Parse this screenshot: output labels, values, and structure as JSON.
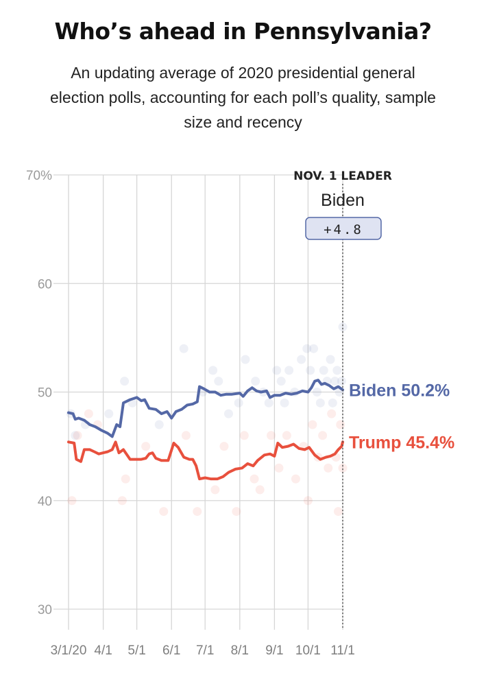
{
  "title": "Who’s ahead in Pennsylvania?",
  "subtitle_lines": [
    "An updating average of 2020 presidential general",
    "election polls, accounting for each poll’s quality, sample",
    "size and recency"
  ],
  "colors": {
    "biden": "#5468a6",
    "trump": "#e8503d",
    "grid": "#d6d6d6",
    "leader_box": "#dfe3f2"
  },
  "chart_data": {
    "type": "line",
    "title": "Who’s ahead in Pennsylvania?",
    "xlabel": "",
    "ylabel": "",
    "ylim": [
      30,
      70
    ],
    "y_ticks": [
      30,
      40,
      50,
      60,
      70
    ],
    "y_tick_labels": [
      "30",
      "40",
      "50",
      "60",
      "70%"
    ],
    "x_range": [
      "2020-03-01",
      "2020-11-03"
    ],
    "x_ticks": [
      "2020-03-01",
      "2020-04-01",
      "2020-05-01",
      "2020-06-01",
      "2020-07-01",
      "2020-08-01",
      "2020-09-01",
      "2020-10-01",
      "2020-11-01"
    ],
    "x_tick_labels": [
      "3/1/20",
      "4/1",
      "5/1",
      "6/1",
      "7/1",
      "8/1",
      "9/1",
      "10/1",
      "11/1"
    ],
    "grid": true,
    "leader": {
      "heading": "NOV. 1 LEADER",
      "name": "Biden",
      "margin": "+4.8",
      "date": "2020-11-01"
    },
    "series": [
      {
        "name": "Biden",
        "label": "Biden 50.2%",
        "color": "#5468a6",
        "points": [
          [
            "2020-03-01",
            48.1
          ],
          [
            "2020-03-05",
            48.0
          ],
          [
            "2020-03-07",
            47.5
          ],
          [
            "2020-03-10",
            47.6
          ],
          [
            "2020-03-15",
            47.4
          ],
          [
            "2020-03-20",
            47.0
          ],
          [
            "2020-03-25",
            46.8
          ],
          [
            "2020-03-30",
            46.5
          ],
          [
            "2020-04-05",
            46.2
          ],
          [
            "2020-04-09",
            45.9
          ],
          [
            "2020-04-13",
            47.0
          ],
          [
            "2020-04-16",
            46.8
          ],
          [
            "2020-04-19",
            49.0
          ],
          [
            "2020-04-25",
            49.3
          ],
          [
            "2020-05-01",
            49.5
          ],
          [
            "2020-05-05",
            49.2
          ],
          [
            "2020-05-08",
            49.3
          ],
          [
            "2020-05-12",
            48.5
          ],
          [
            "2020-05-18",
            48.4
          ],
          [
            "2020-05-23",
            48.0
          ],
          [
            "2020-05-28",
            48.2
          ],
          [
            "2020-06-01",
            47.6
          ],
          [
            "2020-06-05",
            48.2
          ],
          [
            "2020-06-10",
            48.4
          ],
          [
            "2020-06-15",
            48.8
          ],
          [
            "2020-06-20",
            48.9
          ],
          [
            "2020-06-24",
            49.1
          ],
          [
            "2020-06-26",
            50.5
          ],
          [
            "2020-06-30",
            50.3
          ],
          [
            "2020-07-05",
            50.0
          ],
          [
            "2020-07-10",
            50.0
          ],
          [
            "2020-07-15",
            49.7
          ],
          [
            "2020-07-20",
            49.8
          ],
          [
            "2020-07-25",
            49.8
          ],
          [
            "2020-08-01",
            49.9
          ],
          [
            "2020-08-04",
            49.6
          ],
          [
            "2020-08-08",
            50.1
          ],
          [
            "2020-08-12",
            50.4
          ],
          [
            "2020-08-16",
            50.1
          ],
          [
            "2020-08-20",
            50.0
          ],
          [
            "2020-08-25",
            50.1
          ],
          [
            "2020-08-28",
            49.5
          ],
          [
            "2020-09-01",
            49.7
          ],
          [
            "2020-09-06",
            49.7
          ],
          [
            "2020-09-11",
            49.9
          ],
          [
            "2020-09-16",
            49.8
          ],
          [
            "2020-09-21",
            49.9
          ],
          [
            "2020-09-26",
            50.1
          ],
          [
            "2020-10-01",
            50.0
          ],
          [
            "2020-10-04",
            50.4
          ],
          [
            "2020-10-07",
            51.0
          ],
          [
            "2020-10-10",
            51.1
          ],
          [
            "2020-10-13",
            50.7
          ],
          [
            "2020-10-16",
            50.8
          ],
          [
            "2020-10-20",
            50.6
          ],
          [
            "2020-10-24",
            50.3
          ],
          [
            "2020-10-28",
            50.5
          ],
          [
            "2020-11-01",
            50.2
          ]
        ]
      },
      {
        "name": "Trump",
        "label": "Trump 45.4%",
        "color": "#e8503d",
        "points": [
          [
            "2020-03-01",
            45.4
          ],
          [
            "2020-03-06",
            45.3
          ],
          [
            "2020-03-08",
            43.8
          ],
          [
            "2020-03-12",
            43.6
          ],
          [
            "2020-03-15",
            44.7
          ],
          [
            "2020-03-20",
            44.7
          ],
          [
            "2020-03-24",
            44.5
          ],
          [
            "2020-03-28",
            44.3
          ],
          [
            "2020-04-01",
            44.4
          ],
          [
            "2020-04-05",
            44.5
          ],
          [
            "2020-04-09",
            44.7
          ],
          [
            "2020-04-12",
            45.4
          ],
          [
            "2020-04-15",
            44.4
          ],
          [
            "2020-04-19",
            44.7
          ],
          [
            "2020-04-25",
            43.8
          ],
          [
            "2020-05-01",
            43.8
          ],
          [
            "2020-05-05",
            43.8
          ],
          [
            "2020-05-09",
            43.9
          ],
          [
            "2020-05-12",
            44.3
          ],
          [
            "2020-05-15",
            44.4
          ],
          [
            "2020-05-18",
            43.9
          ],
          [
            "2020-05-23",
            43.7
          ],
          [
            "2020-05-29",
            43.7
          ],
          [
            "2020-06-03",
            45.3
          ],
          [
            "2020-06-07",
            44.9
          ],
          [
            "2020-06-12",
            44.0
          ],
          [
            "2020-06-17",
            43.8
          ],
          [
            "2020-06-20",
            43.8
          ],
          [
            "2020-06-23",
            43.2
          ],
          [
            "2020-06-26",
            42.0
          ],
          [
            "2020-07-01",
            42.1
          ],
          [
            "2020-07-06",
            42.0
          ],
          [
            "2020-07-12",
            42.0
          ],
          [
            "2020-07-17",
            42.2
          ],
          [
            "2020-07-22",
            42.6
          ],
          [
            "2020-07-28",
            42.9
          ],
          [
            "2020-08-03",
            43.0
          ],
          [
            "2020-08-08",
            43.4
          ],
          [
            "2020-08-13",
            43.2
          ],
          [
            "2020-08-17",
            43.7
          ],
          [
            "2020-08-23",
            44.2
          ],
          [
            "2020-08-28",
            44.3
          ],
          [
            "2020-09-01",
            44.1
          ],
          [
            "2020-09-04",
            45.3
          ],
          [
            "2020-09-08",
            44.9
          ],
          [
            "2020-09-13",
            45.0
          ],
          [
            "2020-09-18",
            45.2
          ],
          [
            "2020-09-23",
            44.8
          ],
          [
            "2020-09-28",
            44.7
          ],
          [
            "2020-10-02",
            44.9
          ],
          [
            "2020-10-07",
            44.2
          ],
          [
            "2020-10-12",
            43.8
          ],
          [
            "2020-10-17",
            44.0
          ],
          [
            "2020-10-21",
            44.1
          ],
          [
            "2020-10-25",
            44.3
          ],
          [
            "2020-10-28",
            44.7
          ],
          [
            "2020-10-31",
            45.0
          ],
          [
            "2020-11-01",
            45.4
          ]
        ]
      }
    ],
    "polls": [
      {
        "candidate": "Biden",
        "date": "2020-03-03",
        "value": 48
      },
      {
        "candidate": "Biden",
        "date": "2020-03-07",
        "value": 46
      },
      {
        "candidate": "Biden",
        "date": "2020-03-16",
        "value": 47
      },
      {
        "candidate": "Biden",
        "date": "2020-04-06",
        "value": 48
      },
      {
        "candidate": "Biden",
        "date": "2020-04-20",
        "value": 51
      },
      {
        "candidate": "Biden",
        "date": "2020-04-27",
        "value": 49
      },
      {
        "candidate": "Biden",
        "date": "2020-05-21",
        "value": 47
      },
      {
        "candidate": "Biden",
        "date": "2020-06-12",
        "value": 54
      },
      {
        "candidate": "Biden",
        "date": "2020-06-29",
        "value": 50
      },
      {
        "candidate": "Biden",
        "date": "2020-07-08",
        "value": 52
      },
      {
        "candidate": "Biden",
        "date": "2020-07-13",
        "value": 51
      },
      {
        "candidate": "Biden",
        "date": "2020-07-22",
        "value": 48
      },
      {
        "candidate": "Biden",
        "date": "2020-07-31",
        "value": 49
      },
      {
        "candidate": "Biden",
        "date": "2020-08-06",
        "value": 53
      },
      {
        "candidate": "Biden",
        "date": "2020-08-15",
        "value": 51
      },
      {
        "candidate": "Biden",
        "date": "2020-08-22",
        "value": 50
      },
      {
        "candidate": "Biden",
        "date": "2020-08-27",
        "value": 49
      },
      {
        "candidate": "Biden",
        "date": "2020-09-03",
        "value": 52
      },
      {
        "candidate": "Biden",
        "date": "2020-09-07",
        "value": 51
      },
      {
        "candidate": "Biden",
        "date": "2020-09-10",
        "value": 49
      },
      {
        "candidate": "Biden",
        "date": "2020-09-14",
        "value": 52
      },
      {
        "candidate": "Biden",
        "date": "2020-09-19",
        "value": 50
      },
      {
        "candidate": "Biden",
        "date": "2020-09-25",
        "value": 53
      },
      {
        "candidate": "Biden",
        "date": "2020-09-30",
        "value": 54
      },
      {
        "candidate": "Biden",
        "date": "2020-10-03",
        "value": 52
      },
      {
        "candidate": "Biden",
        "date": "2020-10-06",
        "value": 54
      },
      {
        "candidate": "Biden",
        "date": "2020-10-09",
        "value": 50
      },
      {
        "candidate": "Biden",
        "date": "2020-10-12",
        "value": 49
      },
      {
        "candidate": "Biden",
        "date": "2020-10-15",
        "value": 52
      },
      {
        "candidate": "Biden",
        "date": "2020-10-18",
        "value": 51
      },
      {
        "candidate": "Biden",
        "date": "2020-10-21",
        "value": 53
      },
      {
        "candidate": "Biden",
        "date": "2020-10-23",
        "value": 49
      },
      {
        "candidate": "Biden",
        "date": "2020-10-25",
        "value": 51
      },
      {
        "candidate": "Biden",
        "date": "2020-10-27",
        "value": 52
      },
      {
        "candidate": "Biden",
        "date": "2020-10-29",
        "value": 50
      },
      {
        "candidate": "Biden",
        "date": "2020-10-31",
        "value": 51
      },
      {
        "candidate": "Biden",
        "date": "2020-11-01",
        "value": 56
      },
      {
        "candidate": "Trump",
        "date": "2020-03-04",
        "value": 40
      },
      {
        "candidate": "Trump",
        "date": "2020-03-09",
        "value": 46
      },
      {
        "candidate": "Trump",
        "date": "2020-03-19",
        "value": 48
      },
      {
        "candidate": "Trump",
        "date": "2020-03-27",
        "value": 47
      },
      {
        "candidate": "Trump",
        "date": "2020-04-18",
        "value": 40
      },
      {
        "candidate": "Trump",
        "date": "2020-04-21",
        "value": 42
      },
      {
        "candidate": "Trump",
        "date": "2020-05-09",
        "value": 45
      },
      {
        "candidate": "Trump",
        "date": "2020-05-25",
        "value": 39
      },
      {
        "candidate": "Trump",
        "date": "2020-06-14",
        "value": 46
      },
      {
        "candidate": "Trump",
        "date": "2020-06-24",
        "value": 39
      },
      {
        "candidate": "Trump",
        "date": "2020-07-10",
        "value": 41
      },
      {
        "candidate": "Trump",
        "date": "2020-07-18",
        "value": 45
      },
      {
        "candidate": "Trump",
        "date": "2020-07-29",
        "value": 39
      },
      {
        "candidate": "Trump",
        "date": "2020-08-05",
        "value": 46
      },
      {
        "candidate": "Trump",
        "date": "2020-08-14",
        "value": 42
      },
      {
        "candidate": "Trump",
        "date": "2020-08-19",
        "value": 41
      },
      {
        "candidate": "Trump",
        "date": "2020-08-29",
        "value": 46
      },
      {
        "candidate": "Trump",
        "date": "2020-09-05",
        "value": 43
      },
      {
        "candidate": "Trump",
        "date": "2020-09-12",
        "value": 46
      },
      {
        "candidate": "Trump",
        "date": "2020-09-20",
        "value": 42
      },
      {
        "candidate": "Trump",
        "date": "2020-09-27",
        "value": 45
      },
      {
        "candidate": "Trump",
        "date": "2020-10-01",
        "value": 40
      },
      {
        "candidate": "Trump",
        "date": "2020-10-05",
        "value": 47
      },
      {
        "candidate": "Trump",
        "date": "2020-10-10",
        "value": 44
      },
      {
        "candidate": "Trump",
        "date": "2020-10-14",
        "value": 46
      },
      {
        "candidate": "Trump",
        "date": "2020-10-19",
        "value": 43
      },
      {
        "candidate": "Trump",
        "date": "2020-10-22",
        "value": 48
      },
      {
        "candidate": "Trump",
        "date": "2020-10-26",
        "value": 44
      },
      {
        "candidate": "Trump",
        "date": "2020-10-28",
        "value": 39
      },
      {
        "candidate": "Trump",
        "date": "2020-10-30",
        "value": 47
      },
      {
        "candidate": "Trump",
        "date": "2020-11-01",
        "value": 43
      }
    ]
  }
}
